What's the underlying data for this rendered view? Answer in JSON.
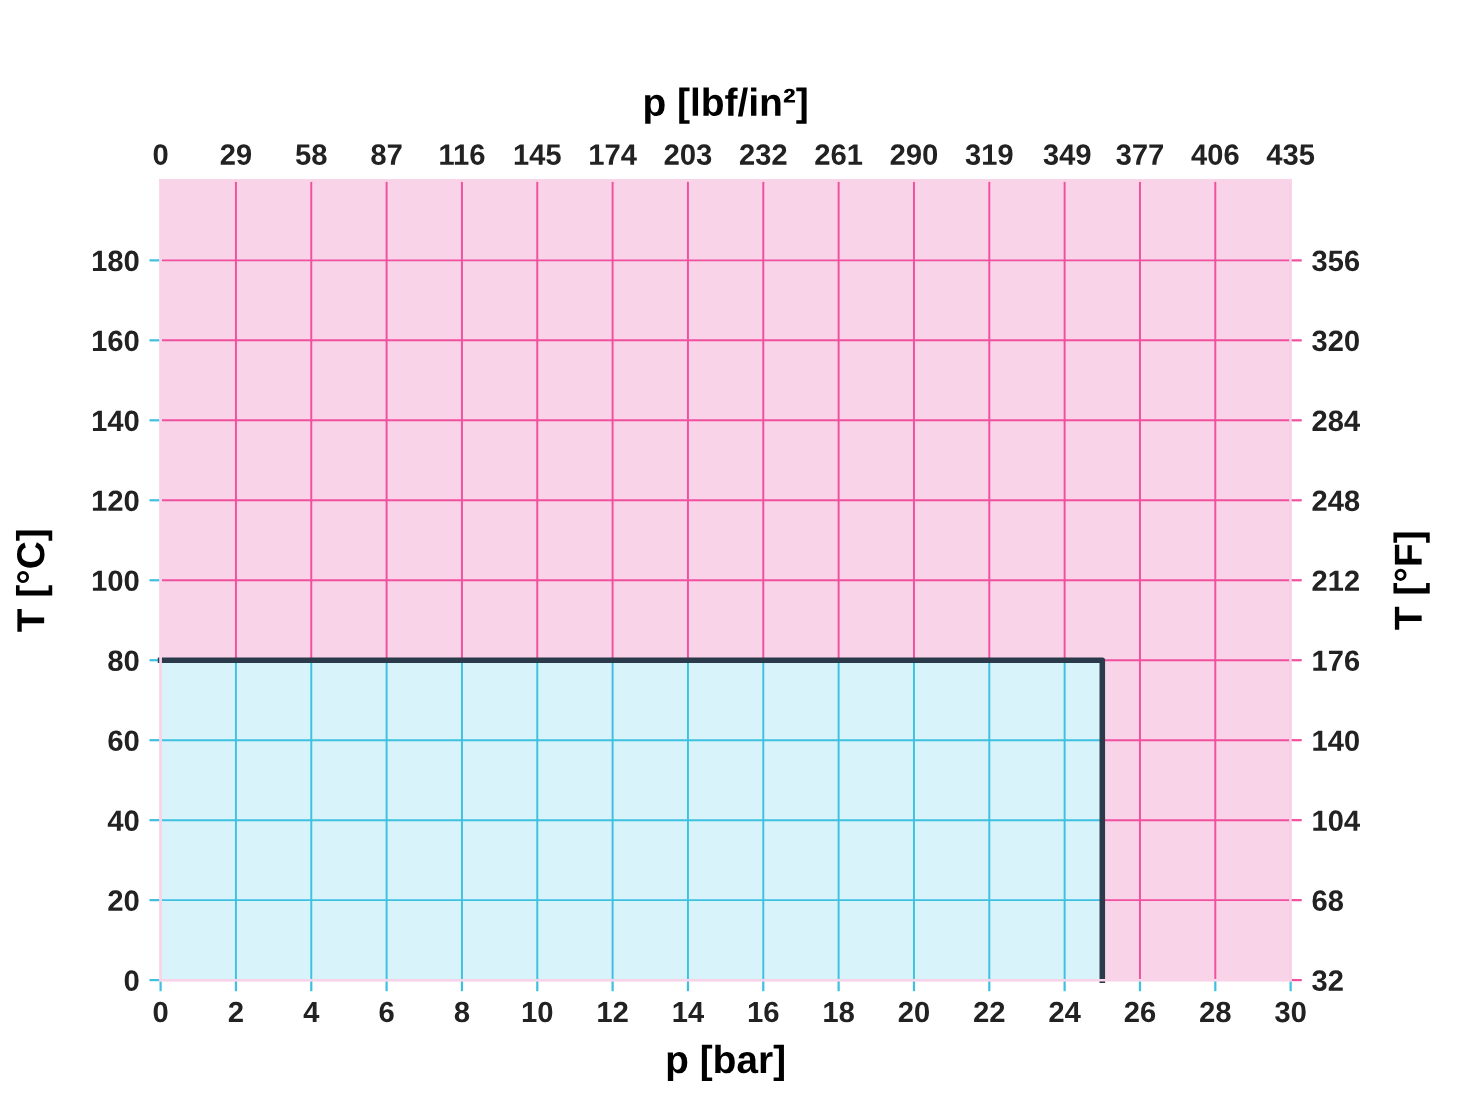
{
  "chart_data": {
    "type": "area",
    "xlabel": "p [bar]",
    "x2label": "p [lbf/in²]",
    "ylabel": "T [°C]",
    "y2label": "T [°F]",
    "xlim": [
      0,
      30
    ],
    "xticks": [
      0,
      2,
      4,
      6,
      8,
      10,
      12,
      14,
      16,
      18,
      20,
      22,
      24,
      26,
      28,
      30
    ],
    "x2lim": [
      0,
      435
    ],
    "x2ticks": [
      0,
      29,
      58,
      87,
      116,
      145,
      174,
      203,
      232,
      261,
      290,
      319,
      349,
      377,
      406,
      435
    ],
    "ylim": [
      0,
      200
    ],
    "yticks": [
      0,
      20,
      40,
      60,
      80,
      100,
      120,
      140,
      160,
      180
    ],
    "y2lim": [
      32,
      392
    ],
    "y2ticks": [
      32,
      68,
      104,
      140,
      176,
      212,
      248,
      284,
      320,
      356
    ],
    "grid": true,
    "series": [
      {
        "color": "#d9f3fa",
        "x": [
          0,
          25
        ],
        "values": [
          80,
          80
        ]
      }
    ]
  }
}
